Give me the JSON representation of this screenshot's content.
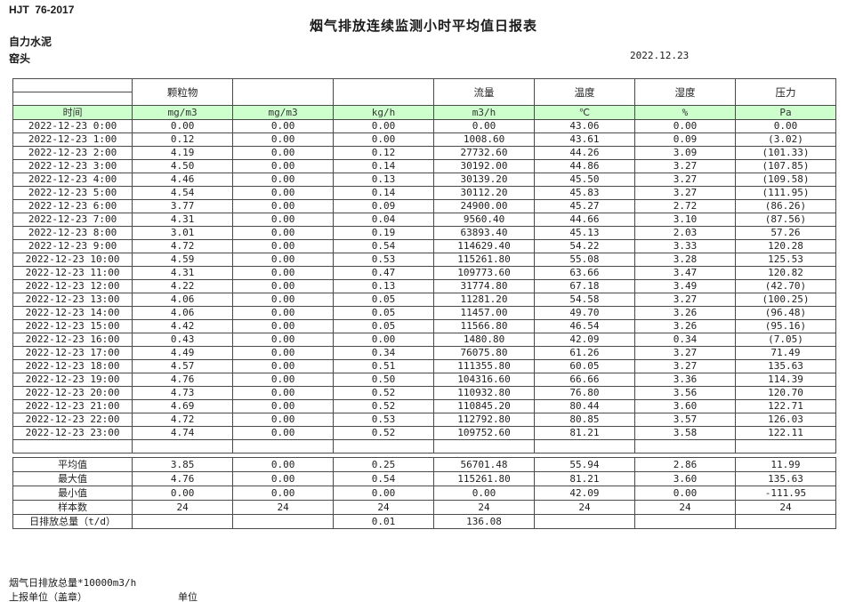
{
  "document": {
    "standard_code": "HJT  76-2017",
    "title": "烟气排放连续监测小时平均值日报表",
    "company": "自力水泥",
    "station": "窑头",
    "date": "2022.12.23"
  },
  "colors": {
    "header_green": "#CCFFCC",
    "negative_red": "#D00000",
    "border": "#4A4A4A"
  },
  "table": {
    "time_label": "时间",
    "group_headers": [
      "",
      "颗粒物",
      "",
      "",
      "流量",
      "温度",
      "湿度",
      "压力"
    ],
    "units": [
      "mg/m3",
      "mg/m3",
      "kg/h",
      "m3/h",
      "℃",
      "%",
      "Pa"
    ],
    "rows": [
      {
        "time": "2022-12-23 0:00",
        "values": [
          "0.00",
          "0.00",
          "0.00",
          "0.00",
          "43.06",
          "0.00",
          "0.00"
        ]
      },
      {
        "time": "2022-12-23 1:00",
        "values": [
          "0.12",
          "0.00",
          "0.00",
          "1008.60",
          "43.61",
          "0.09",
          "(3.02)"
        ]
      },
      {
        "time": "2022-12-23 2:00",
        "values": [
          "4.19",
          "0.00",
          "0.12",
          "27732.60",
          "44.26",
          "3.09",
          "(101.33)"
        ]
      },
      {
        "time": "2022-12-23 3:00",
        "values": [
          "4.50",
          "0.00",
          "0.14",
          "30192.00",
          "44.86",
          "3.27",
          "(107.85)"
        ]
      },
      {
        "time": "2022-12-23 4:00",
        "values": [
          "4.46",
          "0.00",
          "0.13",
          "30139.20",
          "45.50",
          "3.27",
          "(109.58)"
        ]
      },
      {
        "time": "2022-12-23 5:00",
        "values": [
          "4.54",
          "0.00",
          "0.14",
          "30112.20",
          "45.83",
          "3.27",
          "(111.95)"
        ]
      },
      {
        "time": "2022-12-23 6:00",
        "values": [
          "3.77",
          "0.00",
          "0.09",
          "24900.00",
          "45.27",
          "2.72",
          "(86.26)"
        ]
      },
      {
        "time": "2022-12-23 7:00",
        "values": [
          "4.31",
          "0.00",
          "0.04",
          "9560.40",
          "44.66",
          "3.10",
          "(87.56)"
        ]
      },
      {
        "time": "2022-12-23 8:00",
        "values": [
          "3.01",
          "0.00",
          "0.19",
          "63893.40",
          "45.13",
          "2.03",
          "57.26"
        ]
      },
      {
        "time": "2022-12-23 9:00",
        "values": [
          "4.72",
          "0.00",
          "0.54",
          "114629.40",
          "54.22",
          "3.33",
          "120.28"
        ]
      },
      {
        "time": "2022-12-23 10:00",
        "values": [
          "4.59",
          "0.00",
          "0.53",
          "115261.80",
          "55.08",
          "3.28",
          "125.53"
        ]
      },
      {
        "time": "2022-12-23 11:00",
        "values": [
          "4.31",
          "0.00",
          "0.47",
          "109773.60",
          "63.66",
          "3.47",
          "120.82"
        ]
      },
      {
        "time": "2022-12-23 12:00",
        "values": [
          "4.22",
          "0.00",
          "0.13",
          "31774.80",
          "67.18",
          "3.49",
          "(42.70)"
        ]
      },
      {
        "time": "2022-12-23 13:00",
        "values": [
          "4.06",
          "0.00",
          "0.05",
          "11281.20",
          "54.58",
          "3.27",
          "(100.25)"
        ]
      },
      {
        "time": "2022-12-23 14:00",
        "values": [
          "4.06",
          "0.00",
          "0.05",
          "11457.00",
          "49.70",
          "3.26",
          "(96.48)"
        ]
      },
      {
        "time": "2022-12-23 15:00",
        "values": [
          "4.42",
          "0.00",
          "0.05",
          "11566.80",
          "46.54",
          "3.26",
          "(95.16)"
        ]
      },
      {
        "time": "2022-12-23 16:00",
        "values": [
          "0.43",
          "0.00",
          "0.00",
          "1480.80",
          "42.09",
          "0.34",
          "(7.05)"
        ]
      },
      {
        "time": "2022-12-23 17:00",
        "values": [
          "4.49",
          "0.00",
          "0.34",
          "76075.80",
          "61.26",
          "3.27",
          "71.49"
        ]
      },
      {
        "time": "2022-12-23 18:00",
        "values": [
          "4.57",
          "0.00",
          "0.51",
          "111355.80",
          "60.05",
          "3.27",
          "135.63"
        ]
      },
      {
        "time": "2022-12-23 19:00",
        "values": [
          "4.76",
          "0.00",
          "0.50",
          "104316.60",
          "66.66",
          "3.36",
          "114.39"
        ]
      },
      {
        "time": "2022-12-23 20:00",
        "values": [
          "4.73",
          "0.00",
          "0.52",
          "110932.80",
          "76.80",
          "3.56",
          "120.70"
        ]
      },
      {
        "time": "2022-12-23 21:00",
        "values": [
          "4.69",
          "0.00",
          "0.52",
          "110845.20",
          "80.44",
          "3.60",
          "122.71"
        ]
      },
      {
        "time": "2022-12-23 22:00",
        "values": [
          "4.72",
          "0.00",
          "0.53",
          "112792.80",
          "80.85",
          "3.57",
          "126.03"
        ]
      },
      {
        "time": "2022-12-23 23:00",
        "values": [
          "4.74",
          "0.00",
          "0.52",
          "109752.60",
          "81.21",
          "3.58",
          "122.11"
        ]
      }
    ],
    "summary": [
      {
        "label": "平均值",
        "values": [
          "3.85",
          "0.00",
          "0.25",
          "56701.48",
          "55.94",
          "2.86",
          "11.99"
        ]
      },
      {
        "label": "最大值",
        "values": [
          "4.76",
          "0.00",
          "0.54",
          "115261.80",
          "81.21",
          "3.60",
          "135.63"
        ]
      },
      {
        "label": "最小值",
        "values": [
          "0.00",
          "0.00",
          "0.00",
          "0.00",
          "42.09",
          "0.00",
          "-111.95"
        ]
      },
      {
        "label": "样本数",
        "values": [
          "24",
          "24",
          "24",
          "24",
          "24",
          "24",
          "24"
        ]
      },
      {
        "label": "日排放总量（t/d）",
        "values": [
          "",
          "",
          "0.01",
          "136.08",
          "",
          "",
          ""
        ]
      }
    ]
  },
  "footer": {
    "footnote": "烟气日排放总量*10000m3/h",
    "report_unit_label": "上报单位（盖章）",
    "unit_label": "单位"
  }
}
